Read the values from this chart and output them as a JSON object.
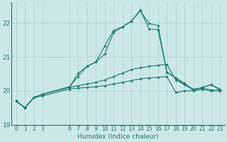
{
  "xlabel": "Humidex (Indice chaleur)",
  "bg_color": "#cce8e5",
  "line_color": "#1a7a6e",
  "grid_color": "#aacfcc",
  "xlim": [
    -0.5,
    23.5
  ],
  "ylim": [
    19.0,
    22.6
  ],
  "yticks": [
    19,
    20,
    21,
    22
  ],
  "xtick_positions": [
    0,
    1,
    2,
    3,
    6,
    7,
    8,
    9,
    10,
    11,
    12,
    13,
    14,
    15,
    16,
    17,
    18,
    19,
    20,
    21,
    22,
    23
  ],
  "xtick_labels": [
    "0",
    "1",
    "2",
    "3",
    "6",
    "7",
    "8",
    "9",
    "10",
    "11",
    "12",
    "13",
    "14",
    "15",
    "16",
    "17",
    "18",
    "19",
    "20",
    "21",
    "22",
    "23"
  ],
  "series": [
    {
      "x": [
        0,
        1,
        2,
        3,
        6,
        7,
        8,
        9,
        10,
        11,
        12,
        13,
        14,
        15,
        16,
        17,
        18,
        19,
        20,
        21,
        22,
        23
      ],
      "y": [
        19.7,
        19.5,
        19.8,
        19.85,
        20.05,
        20.08,
        20.1,
        20.12,
        20.15,
        20.2,
        20.25,
        20.3,
        20.35,
        20.38,
        20.4,
        20.42,
        19.95,
        20.0,
        20.0,
        20.05,
        20.0,
        20.0
      ]
    },
    {
      "x": [
        0,
        1,
        2,
        3,
        6,
        7,
        8,
        9,
        10,
        11,
        12,
        13,
        14,
        15,
        16,
        17,
        18,
        19,
        20,
        21,
        22,
        23
      ],
      "y": [
        19.7,
        19.5,
        19.8,
        19.9,
        20.1,
        20.15,
        20.2,
        20.25,
        20.32,
        20.42,
        20.52,
        20.62,
        20.68,
        20.72,
        20.75,
        20.78,
        20.32,
        20.18,
        20.05,
        20.08,
        20.02,
        20.02
      ]
    },
    {
      "x": [
        0,
        1,
        2,
        3,
        6,
        7,
        8,
        9,
        10,
        11,
        12,
        13,
        14,
        15,
        16,
        17,
        18,
        19,
        20,
        21,
        22,
        23
      ],
      "y": [
        19.7,
        19.5,
        19.8,
        19.9,
        20.12,
        20.42,
        20.72,
        20.85,
        21.08,
        21.72,
        21.88,
        22.05,
        22.35,
        21.98,
        21.92,
        20.55,
        20.38,
        20.22,
        20.02,
        20.1,
        20.18,
        20.05
      ]
    },
    {
      "x": [
        0,
        1,
        2,
        3,
        6,
        7,
        8,
        9,
        10,
        11,
        12,
        13,
        14,
        15,
        16,
        17,
        18,
        19,
        20,
        21,
        22,
        23
      ],
      "y": [
        19.7,
        19.5,
        19.8,
        19.9,
        20.1,
        20.52,
        20.72,
        20.85,
        21.32,
        21.78,
        21.88,
        22.05,
        22.38,
        21.82,
        21.8,
        20.55,
        20.38,
        20.18,
        20.02,
        20.1,
        20.18,
        20.02
      ]
    }
  ]
}
